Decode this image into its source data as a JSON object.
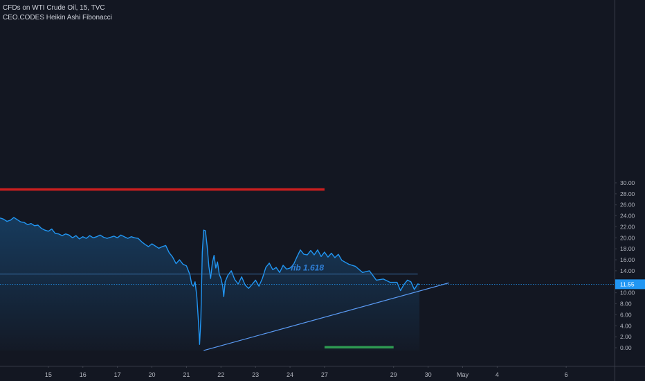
{
  "header": {
    "title": "CFDs on WTI Crude Oil, 15, TVC",
    "indicator": "CEO.CODES Heikin Ashi Fibonacci"
  },
  "chart_data": {
    "type": "area",
    "title": "CFDs on WTI Crude Oil, 15, TVC",
    "ylim": [
      -0.5,
      31.5
    ],
    "y_ticks": [
      "0.00",
      "2.00",
      "4.00",
      "6.00",
      "8.00",
      "10.00",
      "12.00",
      "14.00",
      "16.00",
      "18.00",
      "20.00",
      "22.00",
      "24.00",
      "26.00",
      "28.00",
      "30.00"
    ],
    "x_ticks": [
      {
        "label": "15",
        "t": 1.5
      },
      {
        "label": "16",
        "t": 2.5
      },
      {
        "label": "17",
        "t": 3.5
      },
      {
        "label": "20",
        "t": 4.5
      },
      {
        "label": "21",
        "t": 5.5
      },
      {
        "label": "22",
        "t": 6.5
      },
      {
        "label": "23",
        "t": 7.5
      },
      {
        "label": "24",
        "t": 8.5
      },
      {
        "label": "27",
        "t": 9.5
      },
      {
        "label": "29",
        "t": 11.5
      },
      {
        "label": "30",
        "t": 12.5
      },
      {
        "label": "May",
        "t": 13.5
      },
      {
        "label": "4",
        "t": 14.5
      },
      {
        "label": "6",
        "t": 16.5
      }
    ],
    "xlim": [
      0.1,
      17.9
    ],
    "series": [
      {
        "values": [
          [
            0.1,
            23.6
          ],
          [
            0.2,
            23.4
          ],
          [
            0.3,
            23.0
          ],
          [
            0.4,
            23.2
          ],
          [
            0.5,
            23.7
          ],
          [
            0.6,
            23.3
          ],
          [
            0.7,
            22.9
          ],
          [
            0.8,
            22.8
          ],
          [
            0.9,
            22.4
          ],
          [
            1.0,
            22.6
          ],
          [
            1.1,
            22.2
          ],
          [
            1.2,
            22.3
          ],
          [
            1.3,
            21.7
          ],
          [
            1.4,
            21.4
          ],
          [
            1.5,
            21.2
          ],
          [
            1.6,
            21.6
          ],
          [
            1.7,
            20.8
          ],
          [
            1.8,
            20.7
          ],
          [
            1.9,
            20.4
          ],
          [
            2.0,
            20.7
          ],
          [
            2.1,
            20.5
          ],
          [
            2.2,
            20.0
          ],
          [
            2.3,
            20.4
          ],
          [
            2.4,
            19.8
          ],
          [
            2.5,
            20.2
          ],
          [
            2.6,
            19.9
          ],
          [
            2.7,
            20.4
          ],
          [
            2.8,
            20.0
          ],
          [
            2.9,
            20.2
          ],
          [
            3.0,
            20.5
          ],
          [
            3.1,
            20.1
          ],
          [
            3.2,
            19.9
          ],
          [
            3.3,
            20.1
          ],
          [
            3.4,
            20.3
          ],
          [
            3.5,
            20.0
          ],
          [
            3.6,
            20.5
          ],
          [
            3.7,
            20.2
          ],
          [
            3.8,
            19.9
          ],
          [
            3.9,
            20.2
          ],
          [
            4.0,
            20.0
          ],
          [
            4.1,
            19.9
          ],
          [
            4.2,
            19.3
          ],
          [
            4.3,
            18.8
          ],
          [
            4.4,
            18.4
          ],
          [
            4.5,
            18.9
          ],
          [
            4.6,
            18.5
          ],
          [
            4.7,
            18.1
          ],
          [
            4.8,
            18.4
          ],
          [
            4.9,
            18.6
          ],
          [
            5.0,
            17.3
          ],
          [
            5.1,
            16.5
          ],
          [
            5.2,
            15.3
          ],
          [
            5.3,
            16.0
          ],
          [
            5.4,
            15.2
          ],
          [
            5.5,
            14.9
          ],
          [
            5.6,
            13.3
          ],
          [
            5.65,
            11.6
          ],
          [
            5.7,
            11.2
          ],
          [
            5.75,
            12.0
          ],
          [
            5.8,
            9.3
          ],
          [
            5.85,
            4.4
          ],
          [
            5.88,
            0.6
          ],
          [
            5.92,
            5.5
          ],
          [
            5.96,
            17.4
          ],
          [
            6.0,
            21.4
          ],
          [
            6.05,
            21.3
          ],
          [
            6.1,
            18.5
          ],
          [
            6.15,
            14.8
          ],
          [
            6.2,
            12.6
          ],
          [
            6.25,
            15.4
          ],
          [
            6.3,
            16.8
          ],
          [
            6.35,
            14.5
          ],
          [
            6.4,
            15.6
          ],
          [
            6.45,
            13.4
          ],
          [
            6.5,
            12.6
          ],
          [
            6.55,
            11.2
          ],
          [
            6.58,
            9.3
          ],
          [
            6.62,
            12.0
          ],
          [
            6.7,
            13.2
          ],
          [
            6.8,
            14.0
          ],
          [
            6.9,
            12.4
          ],
          [
            7.0,
            11.6
          ],
          [
            7.1,
            12.9
          ],
          [
            7.2,
            11.4
          ],
          [
            7.3,
            10.8
          ],
          [
            7.4,
            11.5
          ],
          [
            7.5,
            12.3
          ],
          [
            7.6,
            11.2
          ],
          [
            7.7,
            12.6
          ],
          [
            7.8,
            14.6
          ],
          [
            7.9,
            15.4
          ],
          [
            8.0,
            14.2
          ],
          [
            8.1,
            14.6
          ],
          [
            8.2,
            13.7
          ],
          [
            8.3,
            15.0
          ],
          [
            8.4,
            14.3
          ],
          [
            8.5,
            14.5
          ],
          [
            8.6,
            15.1
          ],
          [
            8.7,
            16.5
          ],
          [
            8.8,
            17.8
          ],
          [
            8.9,
            17.0
          ],
          [
            9.0,
            16.9
          ],
          [
            9.1,
            17.7
          ],
          [
            9.2,
            16.9
          ],
          [
            9.3,
            17.8
          ],
          [
            9.4,
            16.6
          ],
          [
            9.5,
            17.4
          ],
          [
            9.6,
            16.5
          ],
          [
            9.7,
            17.2
          ],
          [
            9.8,
            16.4
          ],
          [
            9.9,
            17.0
          ],
          [
            10.0,
            15.9
          ],
          [
            10.2,
            15.2
          ],
          [
            10.4,
            14.8
          ],
          [
            10.6,
            13.7
          ],
          [
            10.8,
            14.0
          ],
          [
            11.0,
            12.3
          ],
          [
            11.2,
            12.5
          ],
          [
            11.4,
            11.9
          ],
          [
            11.6,
            11.9
          ],
          [
            11.7,
            10.4
          ],
          [
            11.8,
            11.5
          ],
          [
            11.9,
            12.3
          ],
          [
            12.0,
            12.0
          ],
          [
            12.1,
            10.6
          ],
          [
            12.2,
            11.6
          ],
          [
            12.25,
            11.55
          ]
        ]
      }
    ],
    "last_value": 11.55,
    "last_label": "11.55",
    "fib_label": "fib 1.618",
    "fib_level": 13.4,
    "resistance_level": 28.8,
    "support_level": 0.1,
    "trendline": [
      [
        6.0,
        -0.5
      ],
      [
        13.1,
        11.8
      ]
    ],
    "colors": {
      "background": "#131722",
      "line": "#2196f3",
      "fill": "#2196f3",
      "trendline": "#5b9cf6",
      "resistance": "#cc1f1f",
      "support": "#2e9b52",
      "fib": "#3f78b5",
      "axis_text": "#b2b5be",
      "axis_line": "#3a3e4a",
      "last_label_bg": "#2196f3"
    },
    "grid": false
  }
}
